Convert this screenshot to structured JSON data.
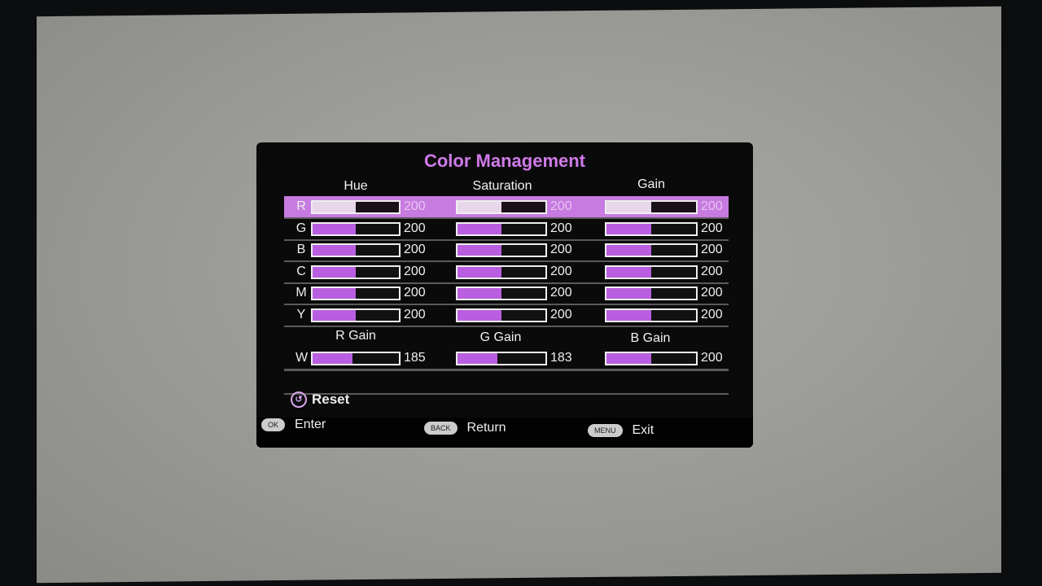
{
  "title": "Color Management",
  "columns": [
    "Hue",
    "Saturation",
    "Gain"
  ],
  "accent": "#c77be0",
  "rows": [
    {
      "label": "R",
      "values": [
        200,
        200,
        200
      ],
      "selected": true
    },
    {
      "label": "G",
      "values": [
        200,
        200,
        200
      ]
    },
    {
      "label": "B",
      "values": [
        200,
        200,
        200
      ]
    },
    {
      "label": "C",
      "values": [
        200,
        200,
        200
      ]
    },
    {
      "label": "M",
      "values": [
        200,
        200,
        200
      ]
    },
    {
      "label": "Y",
      "values": [
        200,
        200,
        200
      ]
    }
  ],
  "white_balance": {
    "columns": [
      "R Gain",
      "G Gain",
      "B Gain"
    ],
    "label": "W",
    "values": [
      185,
      183,
      200
    ]
  },
  "bar_fill_fraction_per_value": 0.0025,
  "reset": {
    "icon": "reset-icon",
    "label": "Reset"
  },
  "footer": [
    {
      "key": "OK",
      "action": "Enter"
    },
    {
      "key": "BACK",
      "action": "Return"
    },
    {
      "key": "MENU",
      "action": "Exit"
    }
  ]
}
